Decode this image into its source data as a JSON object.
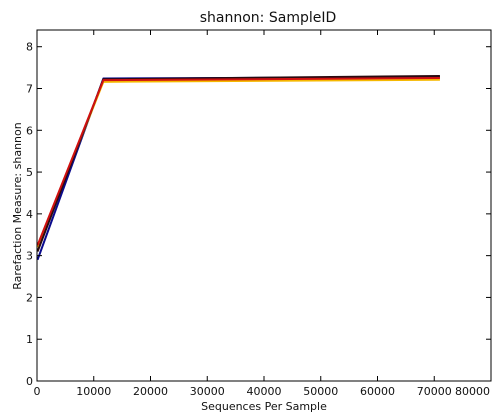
{
  "chart_data": {
    "type": "line",
    "title": "shannon: SampleID",
    "xlabel": "Sequences Per Sample",
    "ylabel": "Rarefaction Measure: shannon",
    "xlim": [
      0,
      80000
    ],
    "ylim": [
      0,
      8.4
    ],
    "xticks": [
      0,
      10000,
      20000,
      30000,
      40000,
      50000,
      60000,
      70000,
      80000
    ],
    "yticks": [
      0,
      1,
      2,
      3,
      4,
      5,
      6,
      7,
      8
    ],
    "grid": false,
    "legend": "none",
    "series": [
      {
        "color": "#0a0a8c",
        "x": [
          100,
          11700,
          71000
        ],
        "y": [
          2.9,
          7.24,
          7.27
        ]
      },
      {
        "color": "#f5b800",
        "x": [
          100,
          11700,
          71000
        ],
        "y": [
          3.2,
          7.16,
          7.21
        ]
      },
      {
        "color": "#2a0a10",
        "x": [
          100,
          11700,
          71000
        ],
        "y": [
          3.1,
          7.22,
          7.3
        ]
      },
      {
        "color": "#d01010",
        "x": [
          100,
          11700,
          71000
        ],
        "y": [
          3.25,
          7.2,
          7.25
        ]
      }
    ]
  }
}
